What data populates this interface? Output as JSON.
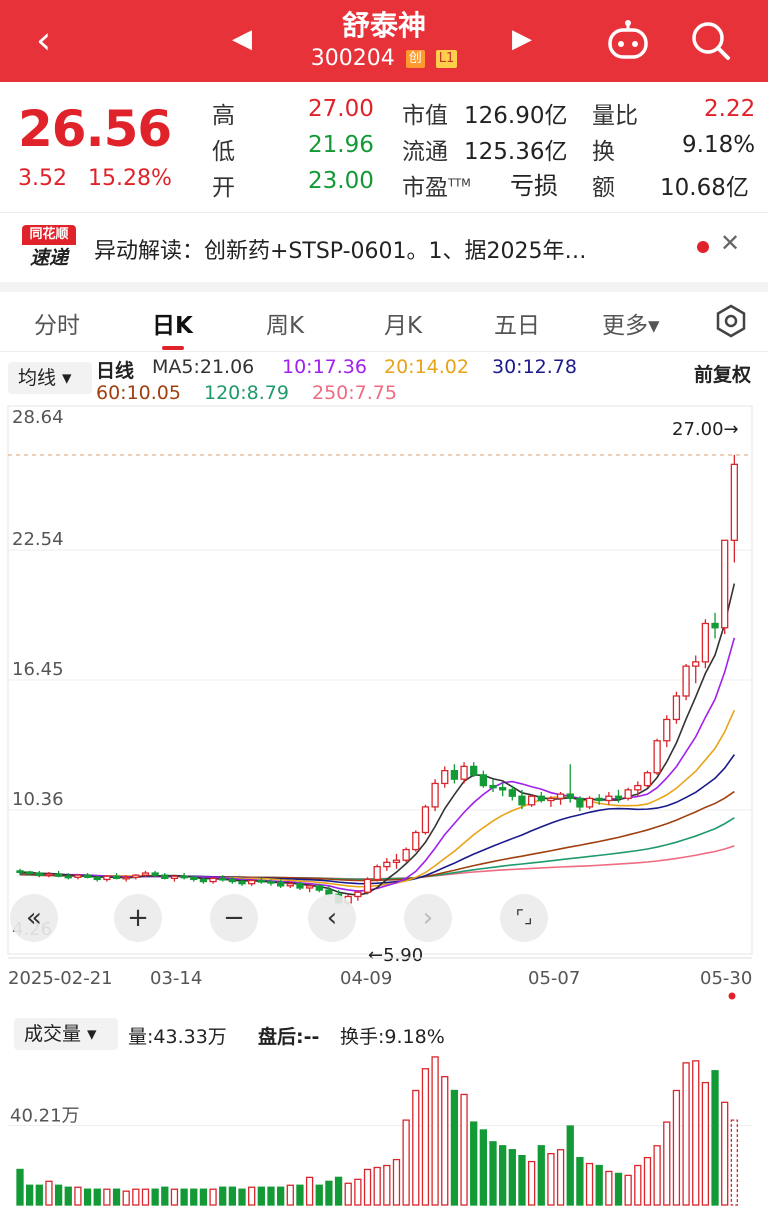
{
  "header": {
    "title": "舒泰神",
    "code": "300204",
    "tag_cy": "创",
    "tag_l1": "L1",
    "back_icon": "chevron-left-icon",
    "prev_icon": "triangle-left-icon",
    "next_icon": "triangle-right-icon"
  },
  "quote": {
    "price": "26.56",
    "change": "3.52",
    "change_pct": "15.28%",
    "high_label": "高",
    "high": "27.00",
    "low_label": "低",
    "low": "21.96",
    "open_label": "开",
    "open": "23.00",
    "mktcap_label": "市值",
    "mktcap": "126.90亿",
    "float_label": "流通",
    "float": "125.36亿",
    "pe_label": "市盈",
    "pe_sup": "TTM",
    "pe": "亏损",
    "vr_label": "量比",
    "vr": "2.22",
    "turnover_label": "换",
    "turnover": "9.18%",
    "amount_label": "额",
    "amount": "10.68亿"
  },
  "news": {
    "logo_top": "同花顺",
    "logo_bottom": "速递",
    "text": "异动解读：创新药+STSP-0601。1、据2025年…",
    "close": "✕"
  },
  "tabs": [
    "分时",
    "日K",
    "周K",
    "月K",
    "五日",
    "更多▾"
  ],
  "active_tab": 1,
  "ma_legend": {
    "button": "均线 ▾",
    "line_label": "日线",
    "ma5": "MA5:21.06",
    "ma10": "10:17.36",
    "ma20": "20:14.02",
    "ma30": "30:12.78",
    "ma60": "60:10.05",
    "ma120": "120:8.79",
    "ma250": "250:7.75",
    "adjust": "前复权",
    "colors": {
      "ma5": "#333333",
      "ma10": "#a020f0",
      "ma20": "#e8a317",
      "ma30": "#1a1a8c",
      "ma60": "#a0400f",
      "ma120": "#1f9a6b",
      "ma250": "#f06b82"
    }
  },
  "chart": {
    "y_ticks": [
      "28.64",
      "22.54",
      "16.45",
      "10.36",
      "4.26"
    ],
    "max_marker": "27.00→",
    "min_marker": "←5.90",
    "x_ticks": [
      "2025-02-21",
      "03-14",
      "04-09",
      "05-07",
      "05-30"
    ],
    "controls": [
      "«",
      "+",
      "−",
      "‹",
      "›",
      "⌜⌟"
    ]
  },
  "volume": {
    "button": "成交量 ▾",
    "vol": "量:43.33万",
    "after": "盘后:--",
    "turnover": "换手:9.18%",
    "y_tick": "40.21万"
  },
  "chart_data": {
    "type": "candlestick",
    "title": "舒泰神 日K",
    "ylim": [
      4.26,
      28.64
    ],
    "x_start": "2025-02-21",
    "x_end": "2025-05-30",
    "candles": [
      [
        7.5,
        7.6,
        7.3,
        7.45
      ],
      [
        7.45,
        7.5,
        7.3,
        7.4
      ],
      [
        7.4,
        7.5,
        7.2,
        7.3
      ],
      [
        7.3,
        7.45,
        7.2,
        7.35
      ],
      [
        7.35,
        7.5,
        7.2,
        7.25
      ],
      [
        7.25,
        7.4,
        7.1,
        7.2
      ],
      [
        7.2,
        7.35,
        7.1,
        7.3
      ],
      [
        7.3,
        7.4,
        7.15,
        7.2
      ],
      [
        7.2,
        7.3,
        7.0,
        7.1
      ],
      [
        7.1,
        7.3,
        7.0,
        7.25
      ],
      [
        7.25,
        7.4,
        7.1,
        7.15
      ],
      [
        7.15,
        7.3,
        7.0,
        7.2
      ],
      [
        7.2,
        7.35,
        7.1,
        7.3
      ],
      [
        7.3,
        7.5,
        7.2,
        7.4
      ],
      [
        7.4,
        7.5,
        7.2,
        7.3
      ],
      [
        7.3,
        7.4,
        7.1,
        7.15
      ],
      [
        7.15,
        7.3,
        7.0,
        7.25
      ],
      [
        7.25,
        7.4,
        7.1,
        7.2
      ],
      [
        7.2,
        7.3,
        7.0,
        7.1
      ],
      [
        7.1,
        7.25,
        6.9,
        7.0
      ],
      [
        7.0,
        7.2,
        6.9,
        7.15
      ],
      [
        7.15,
        7.3,
        7.0,
        7.1
      ],
      [
        7.1,
        7.2,
        6.9,
        7.0
      ],
      [
        7.0,
        7.15,
        6.8,
        6.9
      ],
      [
        6.9,
        7.1,
        6.8,
        7.05
      ],
      [
        7.05,
        7.2,
        6.9,
        7.0
      ],
      [
        7.0,
        7.1,
        6.8,
        6.95
      ],
      [
        6.95,
        7.1,
        6.7,
        6.8
      ],
      [
        6.8,
        7.0,
        6.7,
        6.9
      ],
      [
        6.9,
        7.0,
        6.6,
        6.7
      ],
      [
        6.7,
        6.9,
        6.5,
        6.8
      ],
      [
        6.8,
        6.9,
        6.5,
        6.6
      ],
      [
        6.6,
        6.8,
        6.3,
        6.4
      ],
      [
        6.4,
        6.6,
        5.9,
        6.0
      ],
      [
        6.0,
        6.4,
        5.9,
        6.3
      ],
      [
        6.3,
        6.6,
        6.1,
        6.5
      ],
      [
        6.5,
        7.2,
        6.4,
        7.1
      ],
      [
        7.1,
        7.8,
        7.0,
        7.7
      ],
      [
        7.7,
        8.1,
        7.5,
        7.9
      ],
      [
        7.9,
        8.3,
        7.6,
        8.0
      ],
      [
        8.0,
        8.6,
        7.9,
        8.5
      ],
      [
        8.5,
        9.4,
        8.4,
        9.3
      ],
      [
        9.3,
        10.6,
        9.2,
        10.5
      ],
      [
        10.5,
        11.8,
        10.3,
        11.6
      ],
      [
        11.6,
        12.4,
        11.4,
        12.2
      ],
      [
        12.2,
        12.5,
        11.6,
        11.8
      ],
      [
        11.8,
        12.6,
        11.6,
        12.4
      ],
      [
        12.4,
        12.6,
        11.9,
        12.0
      ],
      [
        12.0,
        12.2,
        11.4,
        11.5
      ],
      [
        11.5,
        11.8,
        11.2,
        11.4
      ],
      [
        11.4,
        11.6,
        11.0,
        11.3
      ],
      [
        11.3,
        11.5,
        10.8,
        11.0
      ],
      [
        11.0,
        11.3,
        10.4,
        10.6
      ],
      [
        10.6,
        11.1,
        10.5,
        11.0
      ],
      [
        11.0,
        11.2,
        10.7,
        10.8
      ],
      [
        10.8,
        11.0,
        10.5,
        10.9
      ],
      [
        10.9,
        11.2,
        10.6,
        11.1
      ],
      [
        11.1,
        12.5,
        10.7,
        10.9
      ],
      [
        10.9,
        11.0,
        10.3,
        10.5
      ],
      [
        10.5,
        11.0,
        10.4,
        10.9
      ],
      [
        10.9,
        11.1,
        10.6,
        10.8
      ],
      [
        10.8,
        11.2,
        10.6,
        11.0
      ],
      [
        11.0,
        11.3,
        10.7,
        10.9
      ],
      [
        10.9,
        11.4,
        10.8,
        11.3
      ],
      [
        11.3,
        11.7,
        11.0,
        11.5
      ],
      [
        11.5,
        12.2,
        11.4,
        12.1
      ],
      [
        12.1,
        13.7,
        12.0,
        13.6
      ],
      [
        13.6,
        14.8,
        13.3,
        14.6
      ],
      [
        14.6,
        15.9,
        14.4,
        15.7
      ],
      [
        15.7,
        17.2,
        15.5,
        17.1
      ],
      [
        17.1,
        17.6,
        16.3,
        17.3
      ],
      [
        17.3,
        19.3,
        17.0,
        19.1
      ],
      [
        19.1,
        19.6,
        18.4,
        18.9
      ],
      [
        18.9,
        23.0,
        18.6,
        23.0
      ],
      [
        23.0,
        27.0,
        21.96,
        26.56
      ]
    ],
    "volume": [
      18,
      10,
      10,
      12,
      10,
      9,
      9,
      8,
      8,
      8,
      8,
      7,
      8,
      8,
      8,
      9,
      8,
      8,
      8,
      8,
      8,
      9,
      9,
      8,
      9,
      9,
      9,
      9,
      10,
      10,
      14,
      10,
      12,
      14,
      11,
      13,
      18,
      19,
      20,
      23,
      43,
      58,
      69,
      75,
      65,
      58,
      56,
      42,
      38,
      32,
      30,
      28,
      25,
      22,
      30,
      26,
      28,
      40,
      24,
      21,
      20,
      17,
      16,
      15,
      20,
      24,
      30,
      42,
      58,
      72,
      73,
      62,
      68,
      52,
      43
    ],
    "volume_unit": "万",
    "volume_ticks": [
      "40.21万"
    ]
  }
}
